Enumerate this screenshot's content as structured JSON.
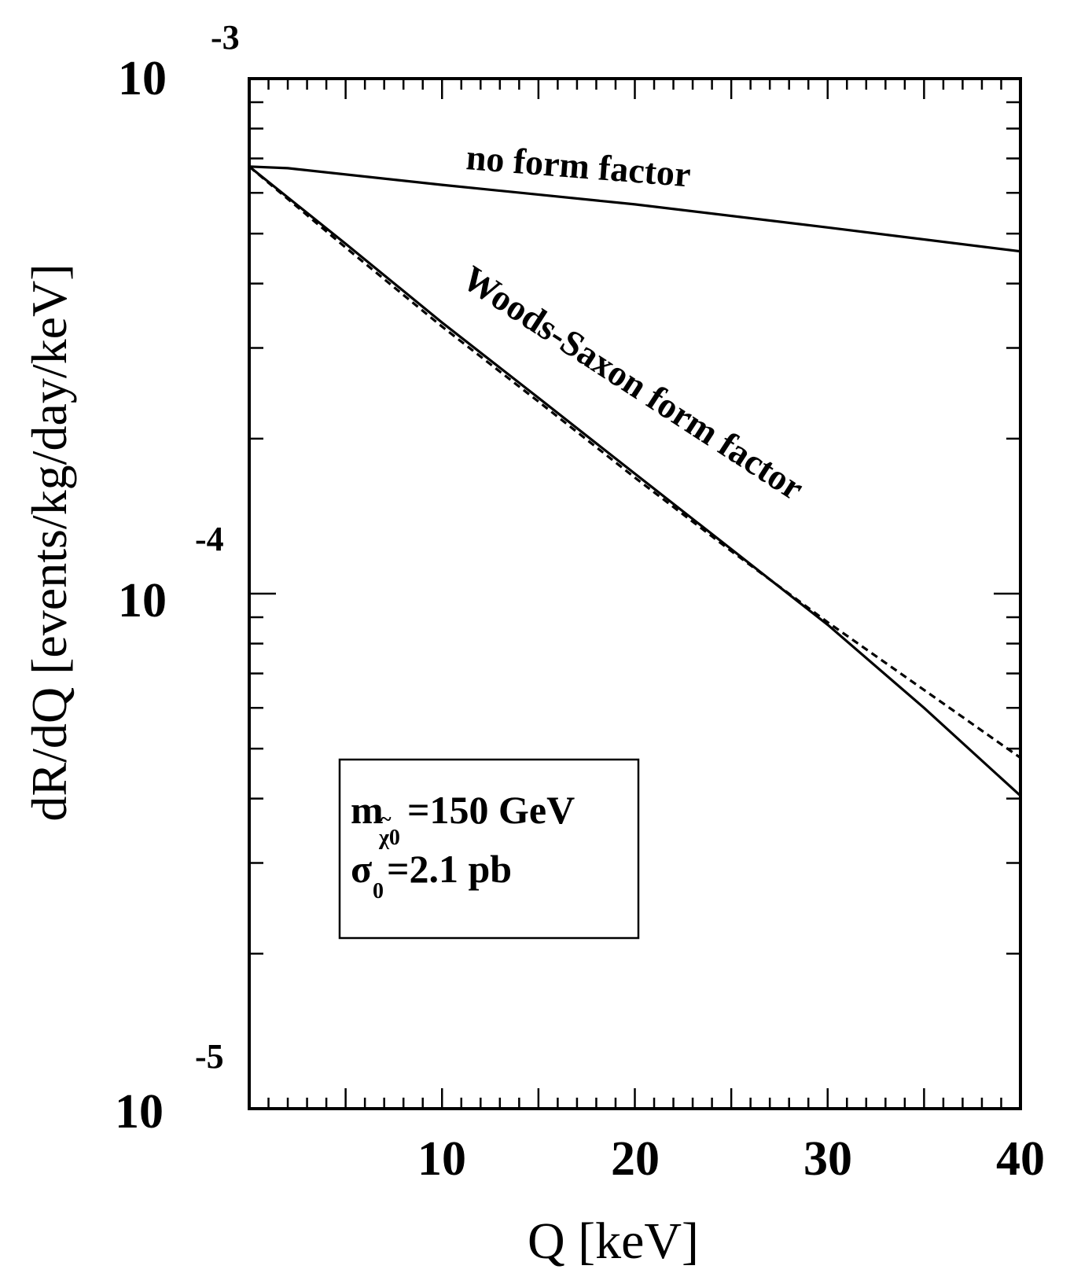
{
  "chart_data": {
    "type": "line",
    "title": "",
    "xlabel": "Q [keV]",
    "ylabel": "dR/dQ [events/kg/day/keV]",
    "xlim": [
      0,
      40
    ],
    "ylim": [
      1e-05,
      0.001
    ],
    "yscale": "log",
    "grid": false,
    "x_ticks": [
      "10",
      "20",
      "30",
      "40"
    ],
    "y_ticks": [
      {
        "base": "10",
        "exp": "-3"
      },
      {
        "base": "10",
        "exp": "-4"
      },
      {
        "base": "10",
        "exp": "-5"
      }
    ],
    "series": [
      {
        "name": "no form factor",
        "style": "solid",
        "color": "#000000",
        "x": [
          0,
          2,
          10,
          20,
          30,
          40
        ],
        "y": [
          0.000675,
          0.00067,
          0.000622,
          0.00057,
          0.000514,
          0.000462
        ]
      },
      {
        "name": "Woods-Saxon form factor",
        "style": "solid",
        "color": "#000000",
        "x": [
          0,
          5,
          10,
          15,
          20,
          25,
          30,
          35,
          40
        ],
        "y": [
          0.000675,
          0.000478,
          0.000336,
          0.00024,
          0.000171,
          0.000122,
          8.7e-05,
          6e-05,
          4.05e-05
        ]
      },
      {
        "name": "",
        "style": "dashed",
        "color": "#000000",
        "x": [
          0,
          5,
          10,
          15,
          20,
          25,
          30,
          35,
          40
        ],
        "y": [
          0.000675,
          0.00047,
          0.00033,
          0.000236,
          0.000168,
          0.000121,
          8.8e-05,
          6.5e-05,
          4.8e-05
        ]
      }
    ],
    "annotations": {
      "curve_label_top": "no form factor",
      "curve_label_middle": "Woods-Saxon form factor",
      "legend_box": {
        "mass_symbol": "m",
        "mass_subscript": "χ0",
        "mass_tilde": "~",
        "mass_value": "=150 GeV",
        "sigma_symbol": "σ",
        "sigma_subscript": "0",
        "sigma_value": "=2.1 pb"
      }
    }
  }
}
